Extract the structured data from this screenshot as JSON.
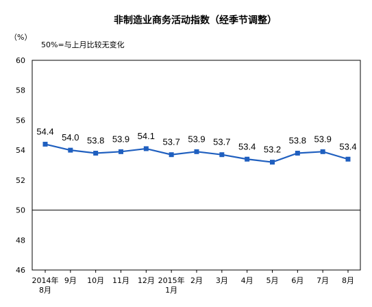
{
  "chart_data": {
    "type": "line",
    "title": "非制造业商务活动指数（经季节调整）",
    "ylabel": "（%）",
    "annotation": "50%=与上月比较无变化",
    "ylim": [
      46,
      60
    ],
    "yticks": [
      "46",
      "48",
      "50",
      "52",
      "54",
      "56",
      "58",
      "60"
    ],
    "reference_line": 50,
    "categories": [
      [
        "2014年",
        "8月"
      ],
      [
        "9月"
      ],
      [
        "10月"
      ],
      [
        "11月"
      ],
      [
        "12月"
      ],
      [
        "2015年",
        "1月"
      ],
      [
        "2月"
      ],
      [
        "3月"
      ],
      [
        "4月"
      ],
      [
        "5月"
      ],
      [
        "6月"
      ],
      [
        "7月"
      ],
      [
        "8月"
      ]
    ],
    "series": [
      {
        "values": [
          54.4,
          54.0,
          53.8,
          53.9,
          54.1,
          53.7,
          53.9,
          53.7,
          53.4,
          53.2,
          53.8,
          53.9,
          53.4
        ],
        "labels": [
          "54.4",
          "54.0",
          "53.8",
          "53.9",
          "54.1",
          "53.7",
          "53.9",
          "53.7",
          "53.4",
          "53.2",
          "53.8",
          "53.9",
          "53.4"
        ],
        "color": "#1f5fbf"
      }
    ],
    "grid": false,
    "legend": "none"
  }
}
